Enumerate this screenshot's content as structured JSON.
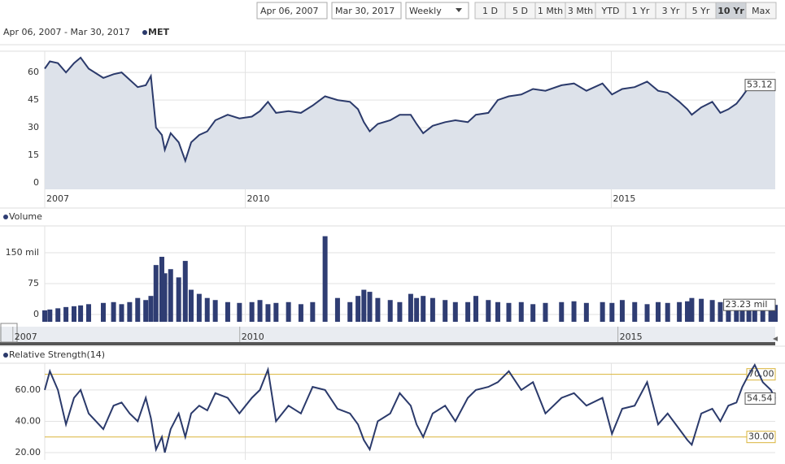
{
  "toolbar": {
    "start_date": "Apr 06, 2007",
    "end_date": "Mar 30, 2017",
    "interval": "Weekly",
    "ranges": [
      "1 D",
      "5 D",
      "1 Mth",
      "3 Mth",
      "YTD",
      "1 Yr",
      "3 Yr",
      "5 Yr",
      "10 Yr",
      "Max"
    ],
    "active_range": "10 Yr"
  },
  "chart_data": [
    {
      "type": "area",
      "title": "Apr 06, 2007 - Mar 30, 2017",
      "x": [
        2007.26,
        2007.33,
        2007.44,
        2007.55,
        2007.66,
        2007.75,
        2007.86,
        2008.06,
        2008.2,
        2008.31,
        2008.42,
        2008.53,
        2008.64,
        2008.71,
        2008.78,
        2008.86,
        2008.9,
        2008.98,
        2009.09,
        2009.18,
        2009.26,
        2009.37,
        2009.48,
        2009.59,
        2009.76,
        2009.92,
        2010.09,
        2010.2,
        2010.31,
        2010.42,
        2010.59,
        2010.76,
        2010.92,
        2011.09,
        2011.26,
        2011.43,
        2011.54,
        2011.62,
        2011.7,
        2011.81,
        2011.98,
        2012.11,
        2012.26,
        2012.34,
        2012.43,
        2012.56,
        2012.73,
        2012.87,
        2013.04,
        2013.15,
        2013.32,
        2013.45,
        2013.6,
        2013.77,
        2013.93,
        2014.1,
        2014.32,
        2014.49,
        2014.66,
        2014.88,
        2015.01,
        2015.15,
        2015.32,
        2015.49,
        2015.64,
        2015.77,
        2015.93,
        2016.04,
        2016.1,
        2016.23,
        2016.38,
        2016.49,
        2016.6,
        2016.71,
        2016.79,
        2016.88,
        2016.96,
        2017.07,
        2017.18,
        2017.24
      ],
      "series": [
        {
          "name": "MET",
          "color": "#2b3a6b",
          "fill": "#dde2ea",
          "values": [
            62,
            66,
            65,
            60,
            65,
            68,
            62,
            57,
            59,
            60,
            56,
            52,
            53,
            58,
            30,
            26,
            18,
            27,
            22,
            12,
            22,
            26,
            28,
            34,
            37,
            35,
            36,
            39,
            44,
            38,
            39,
            38,
            42,
            47,
            45,
            44,
            40,
            33,
            28,
            32,
            34,
            37,
            37,
            32,
            27,
            31,
            33,
            34,
            33,
            37,
            38,
            45,
            47,
            48,
            51,
            50,
            53,
            54,
            50,
            54,
            48,
            51,
            52,
            55,
            50,
            49,
            44,
            40,
            37,
            41,
            44,
            38,
            40,
            43,
            47,
            52,
            54,
            55,
            52,
            53.12
          ]
        }
      ],
      "xlim": [
        2007.26,
        2017.24
      ],
      "xticks": [
        {
          "value": 2007.26,
          "label": "2007"
        },
        2010,
        2015
      ],
      "ylim": [
        -3.5,
        71.5
      ],
      "yticks": [
        0,
        15,
        30,
        45,
        60
      ],
      "grid": true
    },
    {
      "type": "bar",
      "x": [
        2007.26,
        2007.33,
        2007.44,
        2007.55,
        2007.66,
        2007.75,
        2007.86,
        2008.06,
        2008.2,
        2008.31,
        2008.42,
        2008.53,
        2008.64,
        2008.71,
        2008.78,
        2008.86,
        2008.9,
        2008.98,
        2009.09,
        2009.18,
        2009.26,
        2009.37,
        2009.48,
        2009.59,
        2009.76,
        2009.92,
        2010.09,
        2010.2,
        2010.31,
        2010.42,
        2010.59,
        2010.76,
        2010.92,
        2011.09,
        2011.26,
        2011.43,
        2011.54,
        2011.62,
        2011.7,
        2011.81,
        2011.98,
        2012.11,
        2012.26,
        2012.34,
        2012.43,
        2012.56,
        2012.73,
        2012.87,
        2013.04,
        2013.15,
        2013.32,
        2013.45,
        2013.6,
        2013.77,
        2013.93,
        2014.1,
        2014.32,
        2014.49,
        2014.66,
        2014.88,
        2015.01,
        2015.15,
        2015.32,
        2015.49,
        2015.64,
        2015.77,
        2015.93,
        2016.04,
        2016.1,
        2016.23,
        2016.38,
        2016.49,
        2016.6,
        2016.71,
        2016.79,
        2016.88,
        2016.96,
        2017.07,
        2017.18,
        2017.24
      ],
      "series": [
        {
          "name": "Volume",
          "color": "#2f3d73",
          "values": [
            10,
            12,
            15,
            18,
            20,
            22,
            25,
            28,
            30,
            25,
            30,
            40,
            35,
            45,
            120,
            140,
            100,
            110,
            90,
            130,
            60,
            50,
            40,
            35,
            30,
            28,
            30,
            35,
            25,
            28,
            30,
            25,
            30,
            190,
            40,
            30,
            45,
            60,
            55,
            40,
            35,
            30,
            50,
            40,
            45,
            40,
            35,
            30,
            30,
            45,
            35,
            30,
            28,
            30,
            25,
            28,
            30,
            32,
            28,
            30,
            28,
            35,
            30,
            25,
            30,
            28,
            30,
            32,
            40,
            38,
            35,
            30,
            28,
            32,
            30,
            35,
            25,
            30,
            25,
            23.23
          ],
          "value_labels": [
            null,
            null,
            null,
            null,
            null,
            null,
            null,
            null,
            null,
            null,
            null,
            null,
            null,
            null,
            null,
            null,
            null,
            null,
            null,
            null,
            null,
            null,
            null,
            null,
            null,
            null,
            null,
            null,
            null,
            null,
            null,
            null,
            null,
            null,
            null,
            null,
            null,
            null,
            null,
            null,
            null,
            null,
            null,
            null,
            null,
            null,
            null,
            null,
            null,
            null,
            null,
            null,
            null,
            null,
            null,
            null,
            null,
            null,
            null,
            null,
            null,
            null,
            null,
            null,
            null,
            null,
            null,
            null,
            null,
            null,
            null,
            null,
            null,
            null,
            null,
            null,
            null,
            null,
            null,
            "23.23 mil"
          ]
        }
      ],
      "xlim": [
        2007.26,
        2017.24
      ],
      "ylim": [
        -17.8,
        215
      ],
      "yticks": [
        0,
        75,
        {
          "value": 150,
          "label": "150 mil"
        }
      ],
      "grid": true
    },
    {
      "type": "line",
      "x": [
        2007.26,
        2007.33,
        2007.44,
        2007.55,
        2007.66,
        2007.75,
        2007.86,
        2008.06,
        2008.2,
        2008.31,
        2008.42,
        2008.53,
        2008.64,
        2008.71,
        2008.78,
        2008.86,
        2008.9,
        2008.98,
        2009.09,
        2009.18,
        2009.26,
        2009.37,
        2009.48,
        2009.59,
        2009.76,
        2009.92,
        2010.09,
        2010.2,
        2010.31,
        2010.42,
        2010.59,
        2010.76,
        2010.92,
        2011.09,
        2011.26,
        2011.43,
        2011.54,
        2011.62,
        2011.7,
        2011.81,
        2011.98,
        2012.11,
        2012.26,
        2012.34,
        2012.43,
        2012.56,
        2012.73,
        2012.87,
        2013.04,
        2013.15,
        2013.32,
        2013.45,
        2013.6,
        2013.77,
        2013.93,
        2014.1,
        2014.32,
        2014.49,
        2014.66,
        2014.88,
        2015.01,
        2015.15,
        2015.32,
        2015.49,
        2015.64,
        2015.77,
        2015.93,
        2016.04,
        2016.1,
        2016.23,
        2016.38,
        2016.49,
        2016.6,
        2016.71,
        2016.79,
        2016.88,
        2016.96,
        2017.07,
        2017.18,
        2017.24
      ],
      "series": [
        {
          "name": "Relative Strength(14)",
          "color": "#2b3a6b",
          "values": [
            60,
            72,
            60,
            38,
            55,
            60,
            45,
            35,
            50,
            52,
            45,
            40,
            55,
            42,
            22,
            30,
            20,
            35,
            45,
            30,
            45,
            50,
            47,
            58,
            55,
            45,
            55,
            60,
            73,
            40,
            50,
            45,
            62,
            60,
            48,
            45,
            38,
            28,
            22,
            40,
            45,
            58,
            50,
            38,
            30,
            45,
            50,
            40,
            55,
            60,
            62,
            65,
            72,
            60,
            65,
            45,
            55,
            58,
            50,
            55,
            32,
            48,
            50,
            65,
            38,
            45,
            35,
            28,
            25,
            45,
            48,
            40,
            50,
            52,
            62,
            70,
            76,
            65,
            60,
            54.54
          ]
        }
      ],
      "reference_lines": [
        {
          "value": 70,
          "label": "70.00"
        },
        {
          "value": 30,
          "label": "30.00"
        }
      ],
      "reference_color": "#d9b43a",
      "xlim": [
        2007.26,
        2017.24
      ],
      "ylim": [
        15.3,
        77.1
      ],
      "yticks": [
        {
          "value": 20,
          "label": "20.00"
        },
        {
          "value": 40,
          "label": "40.00"
        },
        {
          "value": 60,
          "label": "60.00"
        }
      ],
      "grid": true
    }
  ],
  "navigator": {
    "xlim": [
      2006.83,
      2017.08
    ],
    "xticks": [
      2007,
      2010,
      2015
    ]
  }
}
